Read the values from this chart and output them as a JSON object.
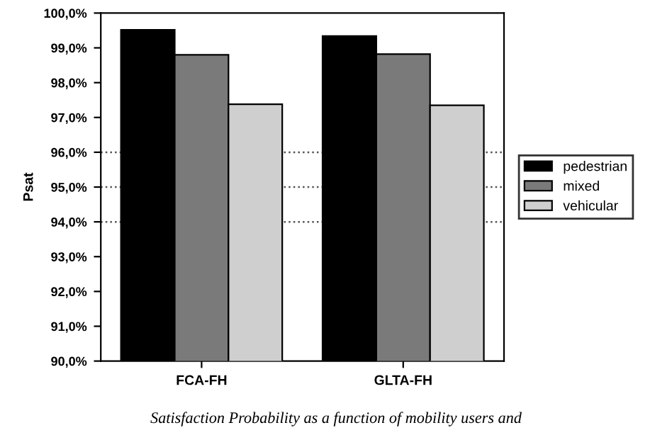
{
  "chart_data": {
    "type": "bar",
    "ylabel": "Psat",
    "categories": [
      "FCA-FH",
      "GLTA-FH"
    ],
    "series": [
      {
        "name": "pedestrian",
        "color": "#000000",
        "values": [
          99.52,
          99.34
        ]
      },
      {
        "name": "mixed",
        "color": "#7a7a7a",
        "values": [
          98.8,
          98.82
        ]
      },
      {
        "name": "vehicular",
        "color": "#cfcfcf",
        "values": [
          97.38,
          97.35
        ]
      }
    ],
    "ylim": [
      90,
      100
    ],
    "yticks": [
      {
        "value": 90,
        "label": "90,0%"
      },
      {
        "value": 91,
        "label": "91,0%"
      },
      {
        "value": 92,
        "label": "92,0%"
      },
      {
        "value": 93,
        "label": "93,0%"
      },
      {
        "value": 94,
        "label": "94,0%"
      },
      {
        "value": 95,
        "label": "95,0%"
      },
      {
        "value": 96,
        "label": "96,0%"
      },
      {
        "value": 97,
        "label": "97,0%"
      },
      {
        "value": 98,
        "label": "98,0%"
      },
      {
        "value": 99,
        "label": "99,0%"
      },
      {
        "value": 100,
        "label": "100,0%"
      }
    ],
    "ref_lines": [
      {
        "axis": "y",
        "value": 94,
        "line_style": "dotted",
        "color": "#555555"
      },
      {
        "axis": "y",
        "value": 95,
        "line_style": "dotted",
        "color": "#555555"
      },
      {
        "axis": "y",
        "value": 96,
        "line_style": "dotted",
        "color": "#555555"
      }
    ],
    "legend": "right",
    "grid": false,
    "annotations": [
      "Satisfaction Probability as a function of mobility users and"
    ]
  }
}
